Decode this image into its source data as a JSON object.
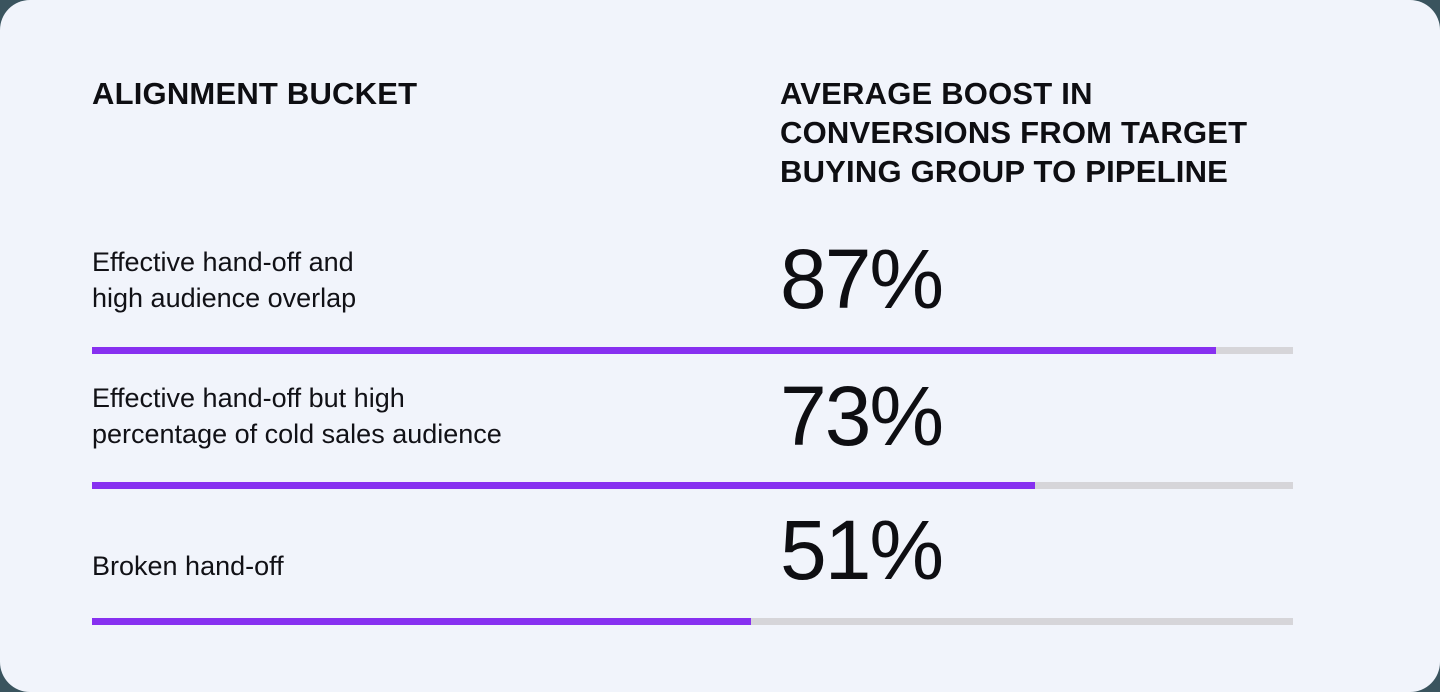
{
  "page": {
    "outer_background": "#3A545E",
    "card_background": "#F1F4FB",
    "text_color": "#0E0E12"
  },
  "table": {
    "col1_header": "ALIGNMENT BUCKET",
    "col2_header": "AVERAGE BOOST IN\nCONVERSIONS FROM TARGET\nBUYING GROUP TO PIPELINE"
  },
  "chart_data": {
    "type": "bar",
    "title": "",
    "xlabel": "ALIGNMENT BUCKET",
    "ylabel": "AVERAGE BOOST IN CONVERSIONS FROM TARGET BUYING GROUP TO PIPELINE",
    "categories": [
      "Effective hand-off and high audience overlap",
      "Effective hand-off but high percentage of cold sales audience",
      "Broken hand-off"
    ],
    "values": [
      87,
      73,
      51
    ],
    "unit": "%",
    "bar_color": "#8730F0",
    "track_color": "#D6D5D9",
    "bar_scale_max": 93,
    "grid": false,
    "legend": false,
    "rows": [
      {
        "label": "Effective hand-off and\nhigh audience overlap",
        "value": 87,
        "display": "87%"
      },
      {
        "label": "Effective hand-off but high\npercentage of cold sales audience",
        "value": 73,
        "display": "73%"
      },
      {
        "label": "Broken hand-off",
        "value": 51,
        "display": "51%"
      }
    ]
  }
}
